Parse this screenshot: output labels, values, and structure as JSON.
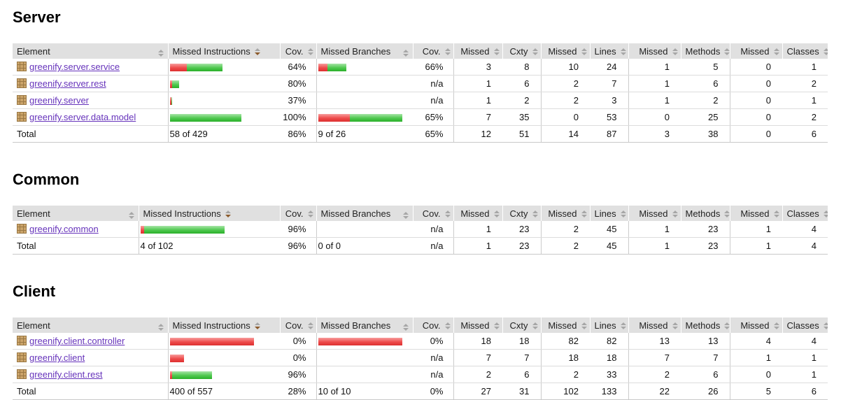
{
  "report": {
    "columns": [
      "Element",
      "Missed Instructions",
      "Cov.",
      "Missed Branches",
      "Cov.",
      "Missed",
      "Cxty",
      "Missed",
      "Lines",
      "Missed",
      "Methods",
      "Missed",
      "Classes"
    ],
    "sorted_column": "Missed Instructions",
    "sort_direction": "descending"
  },
  "colors": {
    "link_purple": "#6633bb",
    "bar_red": "#ee4b4b",
    "bar_green": "#4ec84e",
    "header_bg": "#e0e0e0",
    "sorted_arrow": "#8b5a2b"
  },
  "icons": {
    "package": "package-icon (brown crate glyph before each element link)",
    "sort": "sort-toggle-icon (stacked up/down triangles in sortable headers)"
  },
  "columns": [
    "Element",
    "Missed Instructions",
    "Cov.",
    "Missed Branches",
    "Cov.",
    "Missed",
    "Cxty",
    "Missed",
    "Lines",
    "Missed",
    "Methods",
    "Missed",
    "Classes"
  ],
  "sections": [
    {
      "title": "Server",
      "rows": [
        {
          "package": "greenify.server.service",
          "instr_bar": {
            "red": 24,
            "green": 51
          },
          "instr_cov": "64%",
          "branch_bar": {
            "red": 13,
            "green": 27
          },
          "branch_cov": "66%",
          "missed1": "3",
          "cxty": "8",
          "missed2": "10",
          "lines": "24",
          "missed3": "1",
          "methods": "5",
          "missed4": "0",
          "classes": "1"
        },
        {
          "package": "greenify.server.rest",
          "instr_bar": {
            "red": 3,
            "green": 10
          },
          "instr_cov": "80%",
          "branch_cov": "n/a",
          "missed1": "1",
          "cxty": "6",
          "missed2": "2",
          "lines": "7",
          "missed3": "1",
          "methods": "6",
          "missed4": "0",
          "classes": "2"
        },
        {
          "package": "greenify.server",
          "instr_bar": {
            "red": 2,
            "green": 1
          },
          "instr_cov": "37%",
          "branch_cov": "n/a",
          "missed1": "1",
          "cxty": "2",
          "missed2": "2",
          "lines": "3",
          "missed3": "1",
          "methods": "2",
          "missed4": "0",
          "classes": "1"
        },
        {
          "package": "greenify.server.data.model",
          "instr_bar": {
            "red": 0,
            "green": 102
          },
          "instr_cov": "100%",
          "branch_bar": {
            "red": 45,
            "green": 75
          },
          "branch_cov": "65%",
          "missed1": "7",
          "cxty": "35",
          "missed2": "0",
          "lines": "53",
          "missed3": "0",
          "methods": "25",
          "missed4": "0",
          "classes": "2"
        }
      ],
      "total": {
        "label": "Total",
        "instr": "58 of 429",
        "instr_cov": "86%",
        "branch": "9 of 26",
        "branch_cov": "65%",
        "missed1": "12",
        "cxty": "51",
        "missed2": "14",
        "lines": "87",
        "missed3": "3",
        "methods": "38",
        "missed4": "0",
        "classes": "6"
      }
    },
    {
      "title": "Common",
      "rows": [
        {
          "package": "greenify.common",
          "instr_bar": {
            "red": 5,
            "green": 115
          },
          "instr_cov": "96%",
          "branch_cov": "n/a",
          "missed1": "1",
          "cxty": "23",
          "missed2": "2",
          "lines": "45",
          "missed3": "1",
          "methods": "23",
          "missed4": "1",
          "classes": "4"
        }
      ],
      "total": {
        "label": "Total",
        "instr": "4 of 102",
        "instr_cov": "96%",
        "branch": "0 of 0",
        "branch_cov": "n/a",
        "missed1": "1",
        "cxty": "23",
        "missed2": "2",
        "lines": "45",
        "missed3": "1",
        "methods": "23",
        "missed4": "1",
        "classes": "4"
      }
    },
    {
      "title": "Client",
      "rows": [
        {
          "package": "greenify.client.controller",
          "instr_bar": {
            "red": 120,
            "green": 0
          },
          "instr_cov": "0%",
          "branch_bar": {
            "red": 120,
            "green": 0
          },
          "branch_cov": "0%",
          "missed1": "18",
          "cxty": "18",
          "missed2": "82",
          "lines": "82",
          "missed3": "13",
          "methods": "13",
          "missed4": "4",
          "classes": "4"
        },
        {
          "package": "greenify.client",
          "instr_bar": {
            "red": 20,
            "green": 0
          },
          "instr_cov": "0%",
          "branch_cov": "n/a",
          "missed1": "7",
          "cxty": "7",
          "missed2": "18",
          "lines": "18",
          "missed3": "7",
          "methods": "7",
          "missed4": "1",
          "classes": "1"
        },
        {
          "package": "greenify.client.rest",
          "instr_bar": {
            "red": 3,
            "green": 57
          },
          "instr_cov": "96%",
          "branch_cov": "n/a",
          "missed1": "2",
          "cxty": "6",
          "missed2": "2",
          "lines": "33",
          "missed3": "2",
          "methods": "6",
          "missed4": "0",
          "classes": "1"
        }
      ],
      "total": {
        "label": "Total",
        "instr": "400 of 557",
        "instr_cov": "28%",
        "branch": "10 of 10",
        "branch_cov": "0%",
        "missed1": "27",
        "cxty": "31",
        "missed2": "102",
        "lines": "133",
        "missed3": "22",
        "methods": "26",
        "missed4": "5",
        "classes": "6"
      }
    }
  ]
}
